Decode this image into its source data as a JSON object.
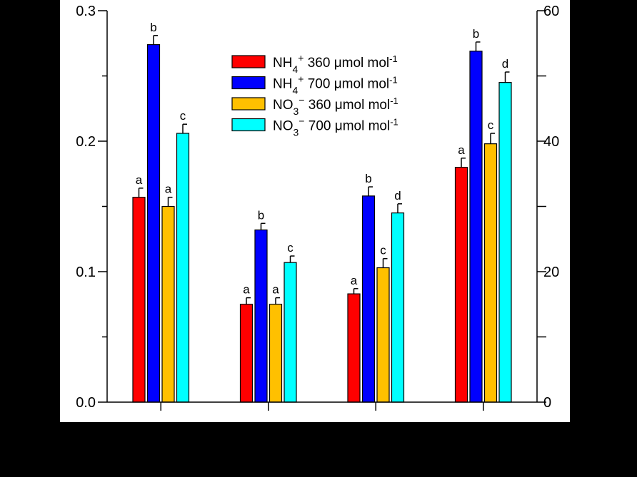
{
  "chart_data": {
    "type": "bar",
    "title": "",
    "xlabel": "",
    "ylabel": "",
    "categories": [
      "",
      "",
      "",
      ""
    ],
    "ylim": [
      0,
      0.3
    ],
    "y_ticks": [
      "0.0",
      "0.1",
      "0.2",
      "0.3"
    ],
    "y2lim": [
      0,
      60
    ],
    "y2_ticks": [
      "0",
      "20",
      "40",
      "60"
    ],
    "legend_position": "top-center",
    "grid": false,
    "series": [
      {
        "name_parts": [
          "NH",
          "4",
          "+",
          " 360 μmol mol",
          "-1"
        ],
        "color": "#ff0000",
        "values": [
          0.157,
          0.075,
          0.083,
          0.18
        ],
        "errors": [
          0.007,
          0.005,
          0.004,
          0.007
        ],
        "letters": [
          "a",
          "a",
          "a",
          "a"
        ]
      },
      {
        "name_parts": [
          "NH",
          "4",
          "+",
          " 700 μmol mol",
          "-1"
        ],
        "color": "#0000ff",
        "values": [
          0.274,
          0.132,
          0.158,
          0.269
        ],
        "errors": [
          0.007,
          0.005,
          0.007,
          0.007
        ],
        "letters": [
          "b",
          "b",
          "b",
          "b"
        ]
      },
      {
        "name_parts": [
          "NO",
          "3",
          "−",
          " 360 μmol mol",
          "-1"
        ],
        "color": "#ffc000",
        "values": [
          0.15,
          0.075,
          0.103,
          0.198
        ],
        "errors": [
          0.007,
          0.005,
          0.007,
          0.008
        ],
        "letters": [
          "a",
          "a",
          "c",
          "c"
        ]
      },
      {
        "name_parts": [
          "NO",
          "3",
          "−",
          " 700 μmol mol",
          "-1"
        ],
        "color": "#00ffff",
        "values": [
          0.206,
          0.107,
          0.145,
          0.245
        ],
        "errors": [
          0.007,
          0.005,
          0.007,
          0.008
        ],
        "letters": [
          "c",
          "c",
          "d",
          "d"
        ]
      }
    ]
  }
}
